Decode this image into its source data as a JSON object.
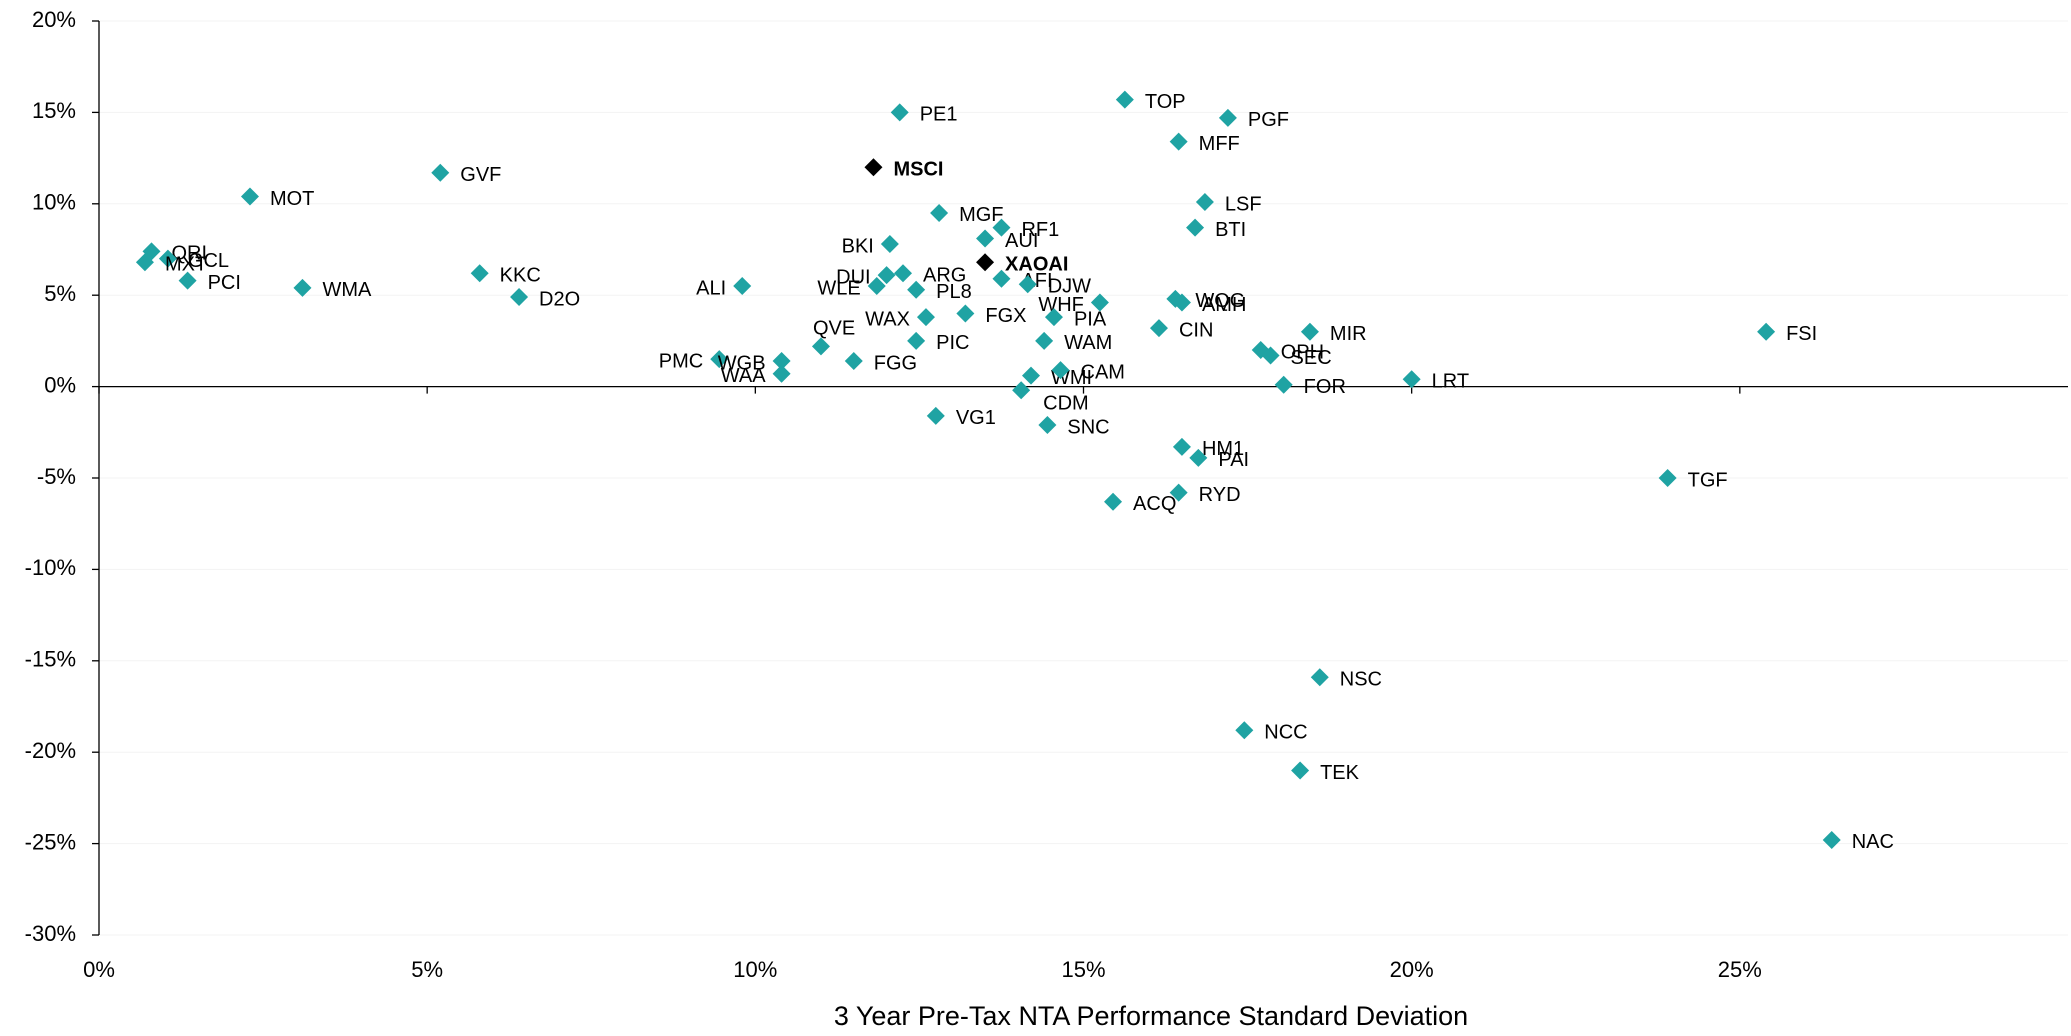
{
  "chart_data": {
    "type": "scatter",
    "xlabel": "3 Year Pre-Tax NTA Performance Standard Deviation",
    "xlim": [
      0,
      30
    ],
    "ylim": [
      -30,
      20
    ],
    "xticks": [
      {
        "value": 0,
        "label": "0%"
      },
      {
        "value": 5,
        "label": "5%"
      },
      {
        "value": 10,
        "label": "10%"
      },
      {
        "value": 15,
        "label": "15%"
      },
      {
        "value": 20,
        "label": "20%"
      },
      {
        "value": 25,
        "label": "25%"
      }
    ],
    "yticks": [
      {
        "value": 20,
        "label": "20%"
      },
      {
        "value": 15,
        "label": "15%"
      },
      {
        "value": 10,
        "label": "10%"
      },
      {
        "value": 5,
        "label": "5%"
      },
      {
        "value": 0,
        "label": "0%"
      },
      {
        "value": -5,
        "label": "-5%"
      },
      {
        "value": -10,
        "label": "-10%"
      },
      {
        "value": -15,
        "label": "-15%"
      },
      {
        "value": -20,
        "label": "-20%"
      },
      {
        "value": -25,
        "label": "-25%"
      },
      {
        "value": -30,
        "label": "-30%"
      }
    ],
    "grid": true,
    "series": [
      {
        "color": "#1fa3a3",
        "bold": false,
        "labels": [
          "TOP",
          "PGF",
          "PE1",
          "MFF",
          "GVF",
          "MOT",
          "LSF",
          "MGF",
          "RF1",
          "BTI",
          "AUI",
          "BKI",
          "QRI",
          "GCL",
          "MXT",
          "ARG",
          "DUI",
          "KKC",
          "AFI",
          "PCI",
          "WMA",
          "ALI",
          "WLE",
          "DJW",
          "PL8",
          "D2O",
          "WQG",
          "WHF",
          "AMH",
          "PIA",
          "WAX",
          "FGX",
          "CIN",
          "MIR",
          "FSI",
          "QVE",
          "WAM",
          "PIC",
          "OPH",
          "SEC",
          "PMC",
          "WGB",
          "FGG",
          "WAA",
          "WMI",
          "CAM",
          "FOR",
          "LRT",
          "CDM",
          "VG1",
          "SNC",
          "HM1",
          "PAI",
          "TGF",
          "RYD",
          "ACQ",
          "NSC",
          "NCC",
          "TEK",
          "NAC"
        ],
        "x": [
          15.63,
          17.2,
          12.2,
          16.45,
          5.2,
          2.3,
          16.85,
          12.8,
          13.75,
          16.7,
          13.5,
          12.05,
          0.8,
          1.05,
          0.7,
          12.25,
          12.0,
          5.8,
          13.75,
          1.35,
          3.1,
          9.8,
          11.85,
          14.15,
          12.45,
          6.4,
          16.4,
          15.25,
          16.5,
          14.55,
          12.6,
          13.2,
          16.15,
          18.45,
          25.4,
          11.0,
          14.4,
          12.45,
          17.7,
          17.85,
          9.45,
          10.4,
          11.5,
          10.4,
          14.2,
          14.65,
          18.05,
          20.0,
          14.05,
          12.75,
          14.45,
          16.5,
          16.75,
          23.9,
          16.45,
          15.45,
          18.6,
          17.45,
          18.3,
          26.4
        ],
        "y": [
          15.7,
          14.7,
          15.0,
          13.4,
          11.7,
          10.4,
          10.1,
          9.5,
          8.7,
          8.7,
          8.1,
          7.8,
          7.4,
          7.0,
          6.8,
          6.2,
          6.1,
          6.2,
          5.9,
          5.8,
          5.4,
          5.5,
          5.5,
          5.6,
          5.3,
          4.9,
          4.8,
          4.6,
          4.6,
          3.8,
          3.8,
          4.0,
          3.2,
          3.0,
          3.0,
          2.2,
          2.5,
          2.5,
          2.0,
          1.7,
          1.5,
          1.4,
          1.4,
          0.7,
          0.6,
          0.9,
          0.1,
          0.4,
          -0.2,
          -1.6,
          -2.1,
          -3.3,
          -3.9,
          -5.0,
          -5.8,
          -6.3,
          -15.9,
          -18.8,
          -21.0,
          -24.8
        ],
        "label_positions": [
          "right",
          "right",
          "right",
          "right",
          "right",
          "right",
          "right",
          "right",
          "right",
          "right",
          "right",
          "left",
          "right",
          "right",
          "right",
          "right",
          "left",
          "right",
          "right",
          "right",
          "right",
          "left",
          "left",
          "right",
          "right",
          "right",
          "right",
          "left",
          "right",
          "right",
          "left",
          "right",
          "right",
          "right",
          "right",
          "above",
          "right",
          "right",
          "right",
          "right",
          "left",
          "left",
          "right",
          "left",
          "right",
          "right",
          "right",
          "right",
          "below",
          "right",
          "right",
          "right",
          "right",
          "right",
          "right",
          "right",
          "right",
          "right",
          "right",
          "right"
        ]
      },
      {
        "color": "#000000",
        "bold": true,
        "labels": [
          "MSCI",
          "XAOAI"
        ],
        "x": [
          11.8,
          13.5
        ],
        "y": [
          12.0,
          6.8
        ],
        "label_positions": [
          "right",
          "right"
        ]
      }
    ]
  }
}
